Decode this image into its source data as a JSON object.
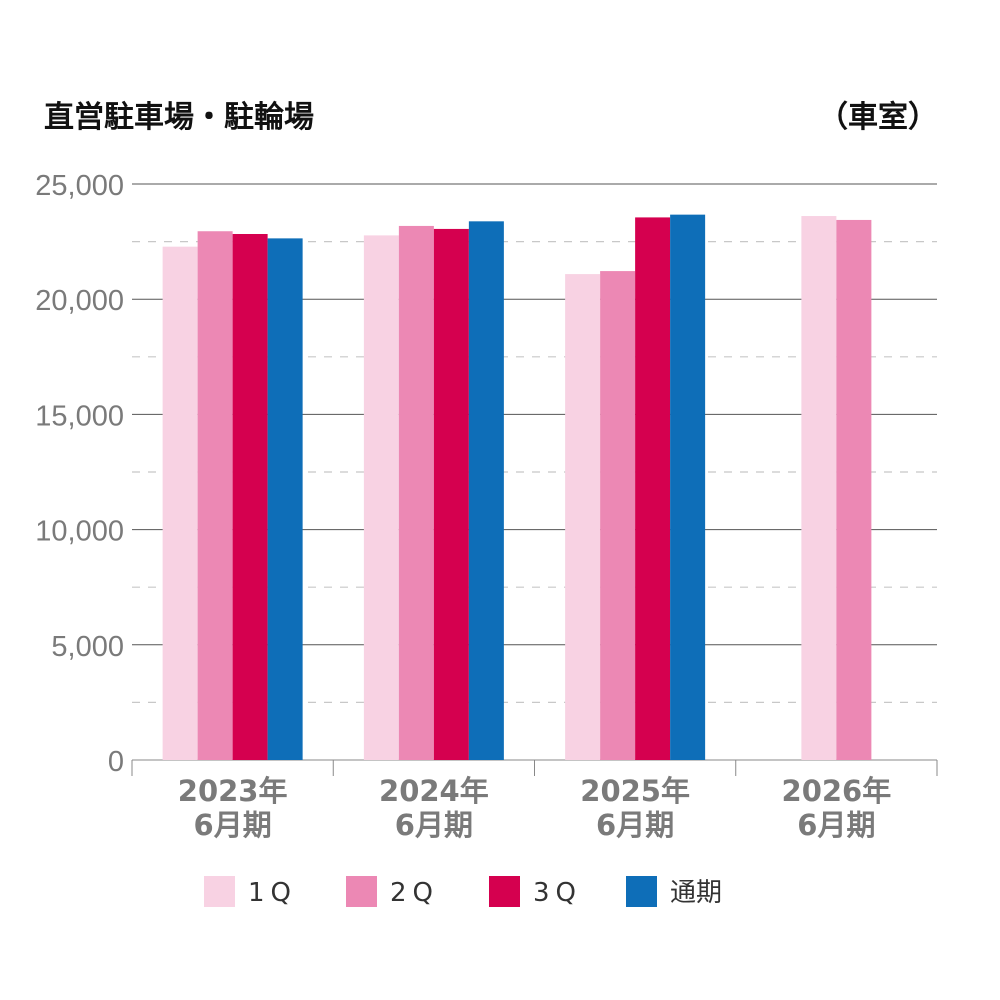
{
  "chart_data": {
    "type": "bar",
    "title": "直営駐車場・駐輪場",
    "unit": "（車室）",
    "categories": [
      [
        "2023年",
        "6月期"
      ],
      [
        "2024年",
        "6月期"
      ],
      [
        "2025年",
        "6月期"
      ],
      [
        "2026年",
        "6月期"
      ]
    ],
    "series": [
      {
        "name": "1Q",
        "color": "#f8d2e3",
        "values": [
          22280,
          22770,
          21090,
          23610
        ]
      },
      {
        "name": "2Q",
        "color": "#ec88b4",
        "values": [
          22950,
          23180,
          21220,
          23440
        ]
      },
      {
        "name": "3Q",
        "color": "#d5004f",
        "values": [
          22830,
          23050,
          23550,
          null
        ]
      },
      {
        "name": "通期",
        "color": "#0e6eb8",
        "values": [
          22640,
          23380,
          23670,
          null
        ]
      }
    ],
    "ylim": [
      0,
      25000
    ],
    "yticks": [
      "0",
      "5,000",
      "10,000",
      "15,000",
      "20,000",
      "25,000"
    ],
    "ytick_values": [
      0,
      5000,
      10000,
      15000,
      20000,
      25000
    ],
    "grid": "solid major, dashed minor",
    "legend": "bottom"
  }
}
